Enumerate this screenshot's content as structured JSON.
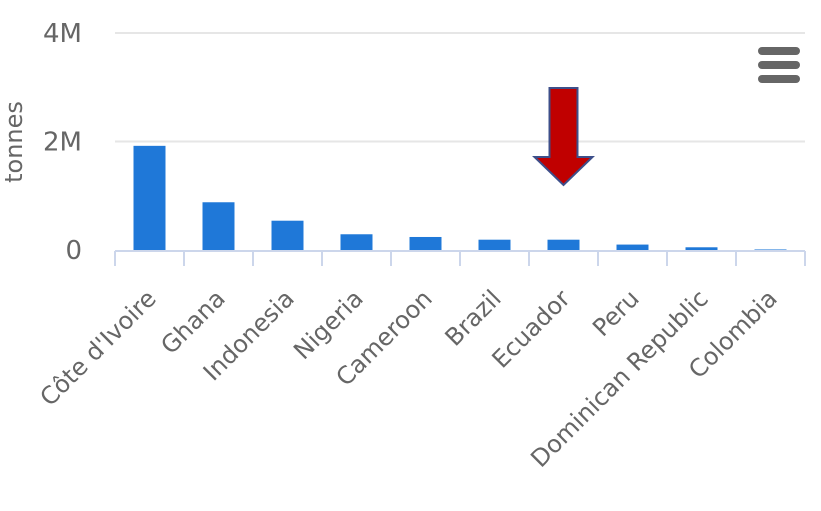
{
  "chart_data": {
    "type": "bar",
    "categories": [
      "Côte d'Ivoire",
      "Ghana",
      "Indonesia",
      "Nigeria",
      "Cameroon",
      "Brazil",
      "Ecuador",
      "Peru",
      "Dominican Republic",
      "Colombia"
    ],
    "series": [
      {
        "values": [
          1920000,
          880000,
          540000,
          290000,
          240000,
          190000,
          190000,
          100000,
          50000,
          10000
        ]
      }
    ],
    "ylabel": "tonnes",
    "ylim": [
      0,
      4000000
    ],
    "yticks": [
      "0",
      "2M",
      "4M"
    ],
    "grid": true,
    "legend": "none"
  },
  "annotation": {
    "type": "arrow",
    "target_category": "Ecuador",
    "color": "#c00000"
  },
  "menu": {
    "icon": "hamburger-menu-icon"
  },
  "colors": {
    "bar": "#1f78d8",
    "arrow": "#c00000",
    "grid": "#e6e6e6",
    "text": "#666666"
  }
}
